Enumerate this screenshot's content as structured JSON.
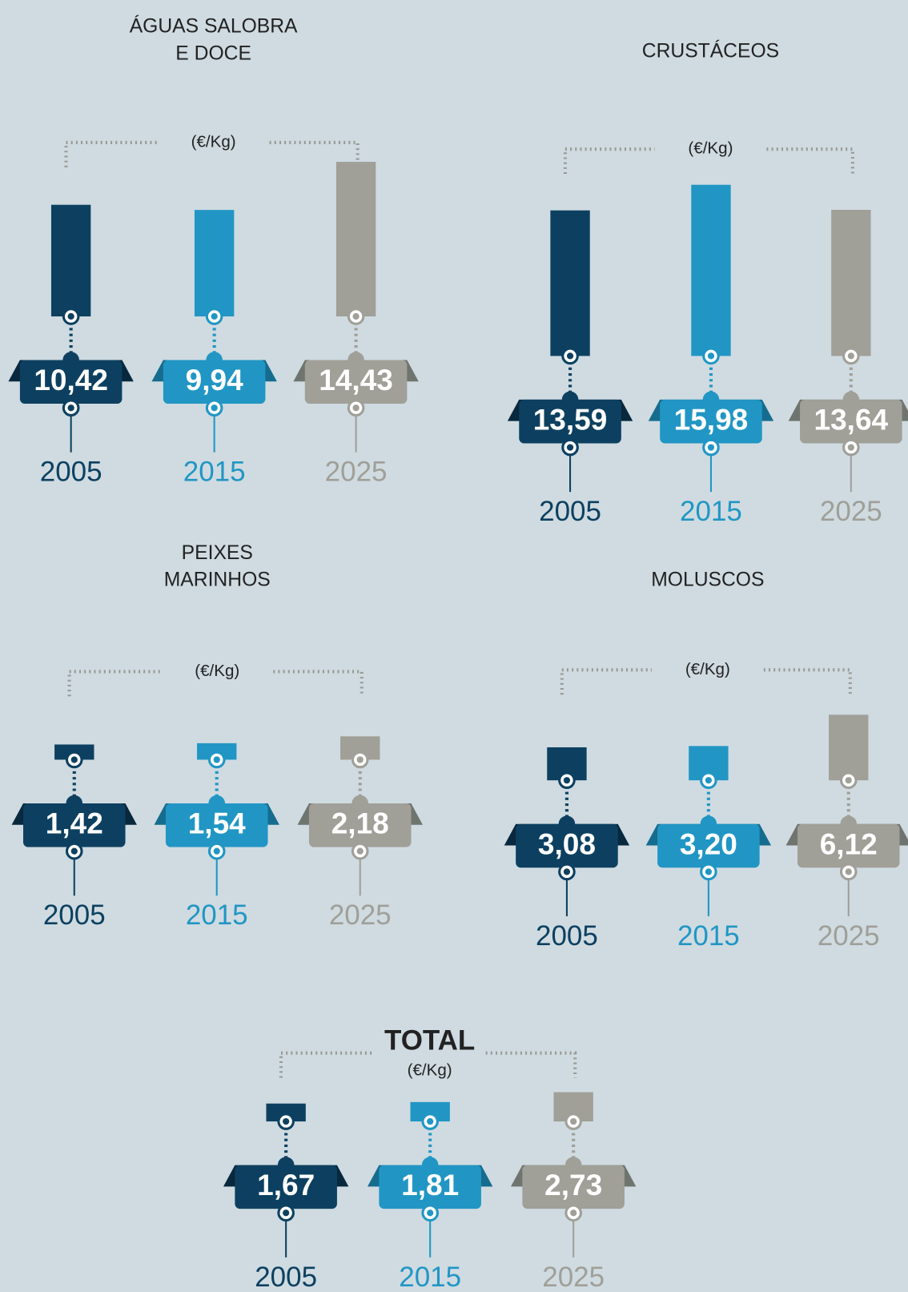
{
  "chart_data": [
    {
      "type": "bar",
      "title": [
        "ÁGUAS SALOBRA",
        "E DOCE"
      ],
      "unit": "(€/Kg)",
      "categories": [
        "2005",
        "2015",
        "2025"
      ],
      "values": [
        10.42,
        9.94,
        14.43
      ],
      "value_labels": [
        "10,42",
        "9,94",
        "14,43"
      ],
      "colors": [
        "#0d4060",
        "#2196c4",
        "#a09f98"
      ]
    },
    {
      "type": "bar",
      "title": [
        "CRUSTÁCEOS"
      ],
      "unit": "(€/Kg)",
      "categories": [
        "2005",
        "2015",
        "2025"
      ],
      "values": [
        13.59,
        15.98,
        13.64
      ],
      "value_labels": [
        "13,59",
        "15,98",
        "13,64"
      ],
      "colors": [
        "#0d4060",
        "#2196c4",
        "#a09f98"
      ]
    },
    {
      "type": "bar",
      "title": [
        "PEIXES",
        "MARINHOS"
      ],
      "unit": "(€/Kg)",
      "categories": [
        "2005",
        "2015",
        "2025"
      ],
      "values": [
        1.42,
        1.54,
        2.18
      ],
      "value_labels": [
        "1,42",
        "1,54",
        "2,18"
      ],
      "colors": [
        "#0d4060",
        "#2196c4",
        "#a09f98"
      ]
    },
    {
      "type": "bar",
      "title": [
        "MOLUSCOS"
      ],
      "unit": "(€/Kg)",
      "categories": [
        "2005",
        "2015",
        "2025"
      ],
      "values": [
        3.08,
        3.2,
        6.12
      ],
      "value_labels": [
        "3,08",
        "3,20",
        "6,12"
      ],
      "colors": [
        "#0d4060",
        "#2196c4",
        "#a09f98"
      ]
    },
    {
      "type": "bar",
      "title": [
        "TOTAL"
      ],
      "unit": "(€/Kg)",
      "categories": [
        "2005",
        "2015",
        "2025"
      ],
      "values": [
        1.67,
        1.81,
        2.73
      ],
      "value_labels": [
        "1,67",
        "1,81",
        "2,73"
      ],
      "colors": [
        "#0d4060",
        "#2196c4",
        "#a09f98"
      ]
    }
  ]
}
